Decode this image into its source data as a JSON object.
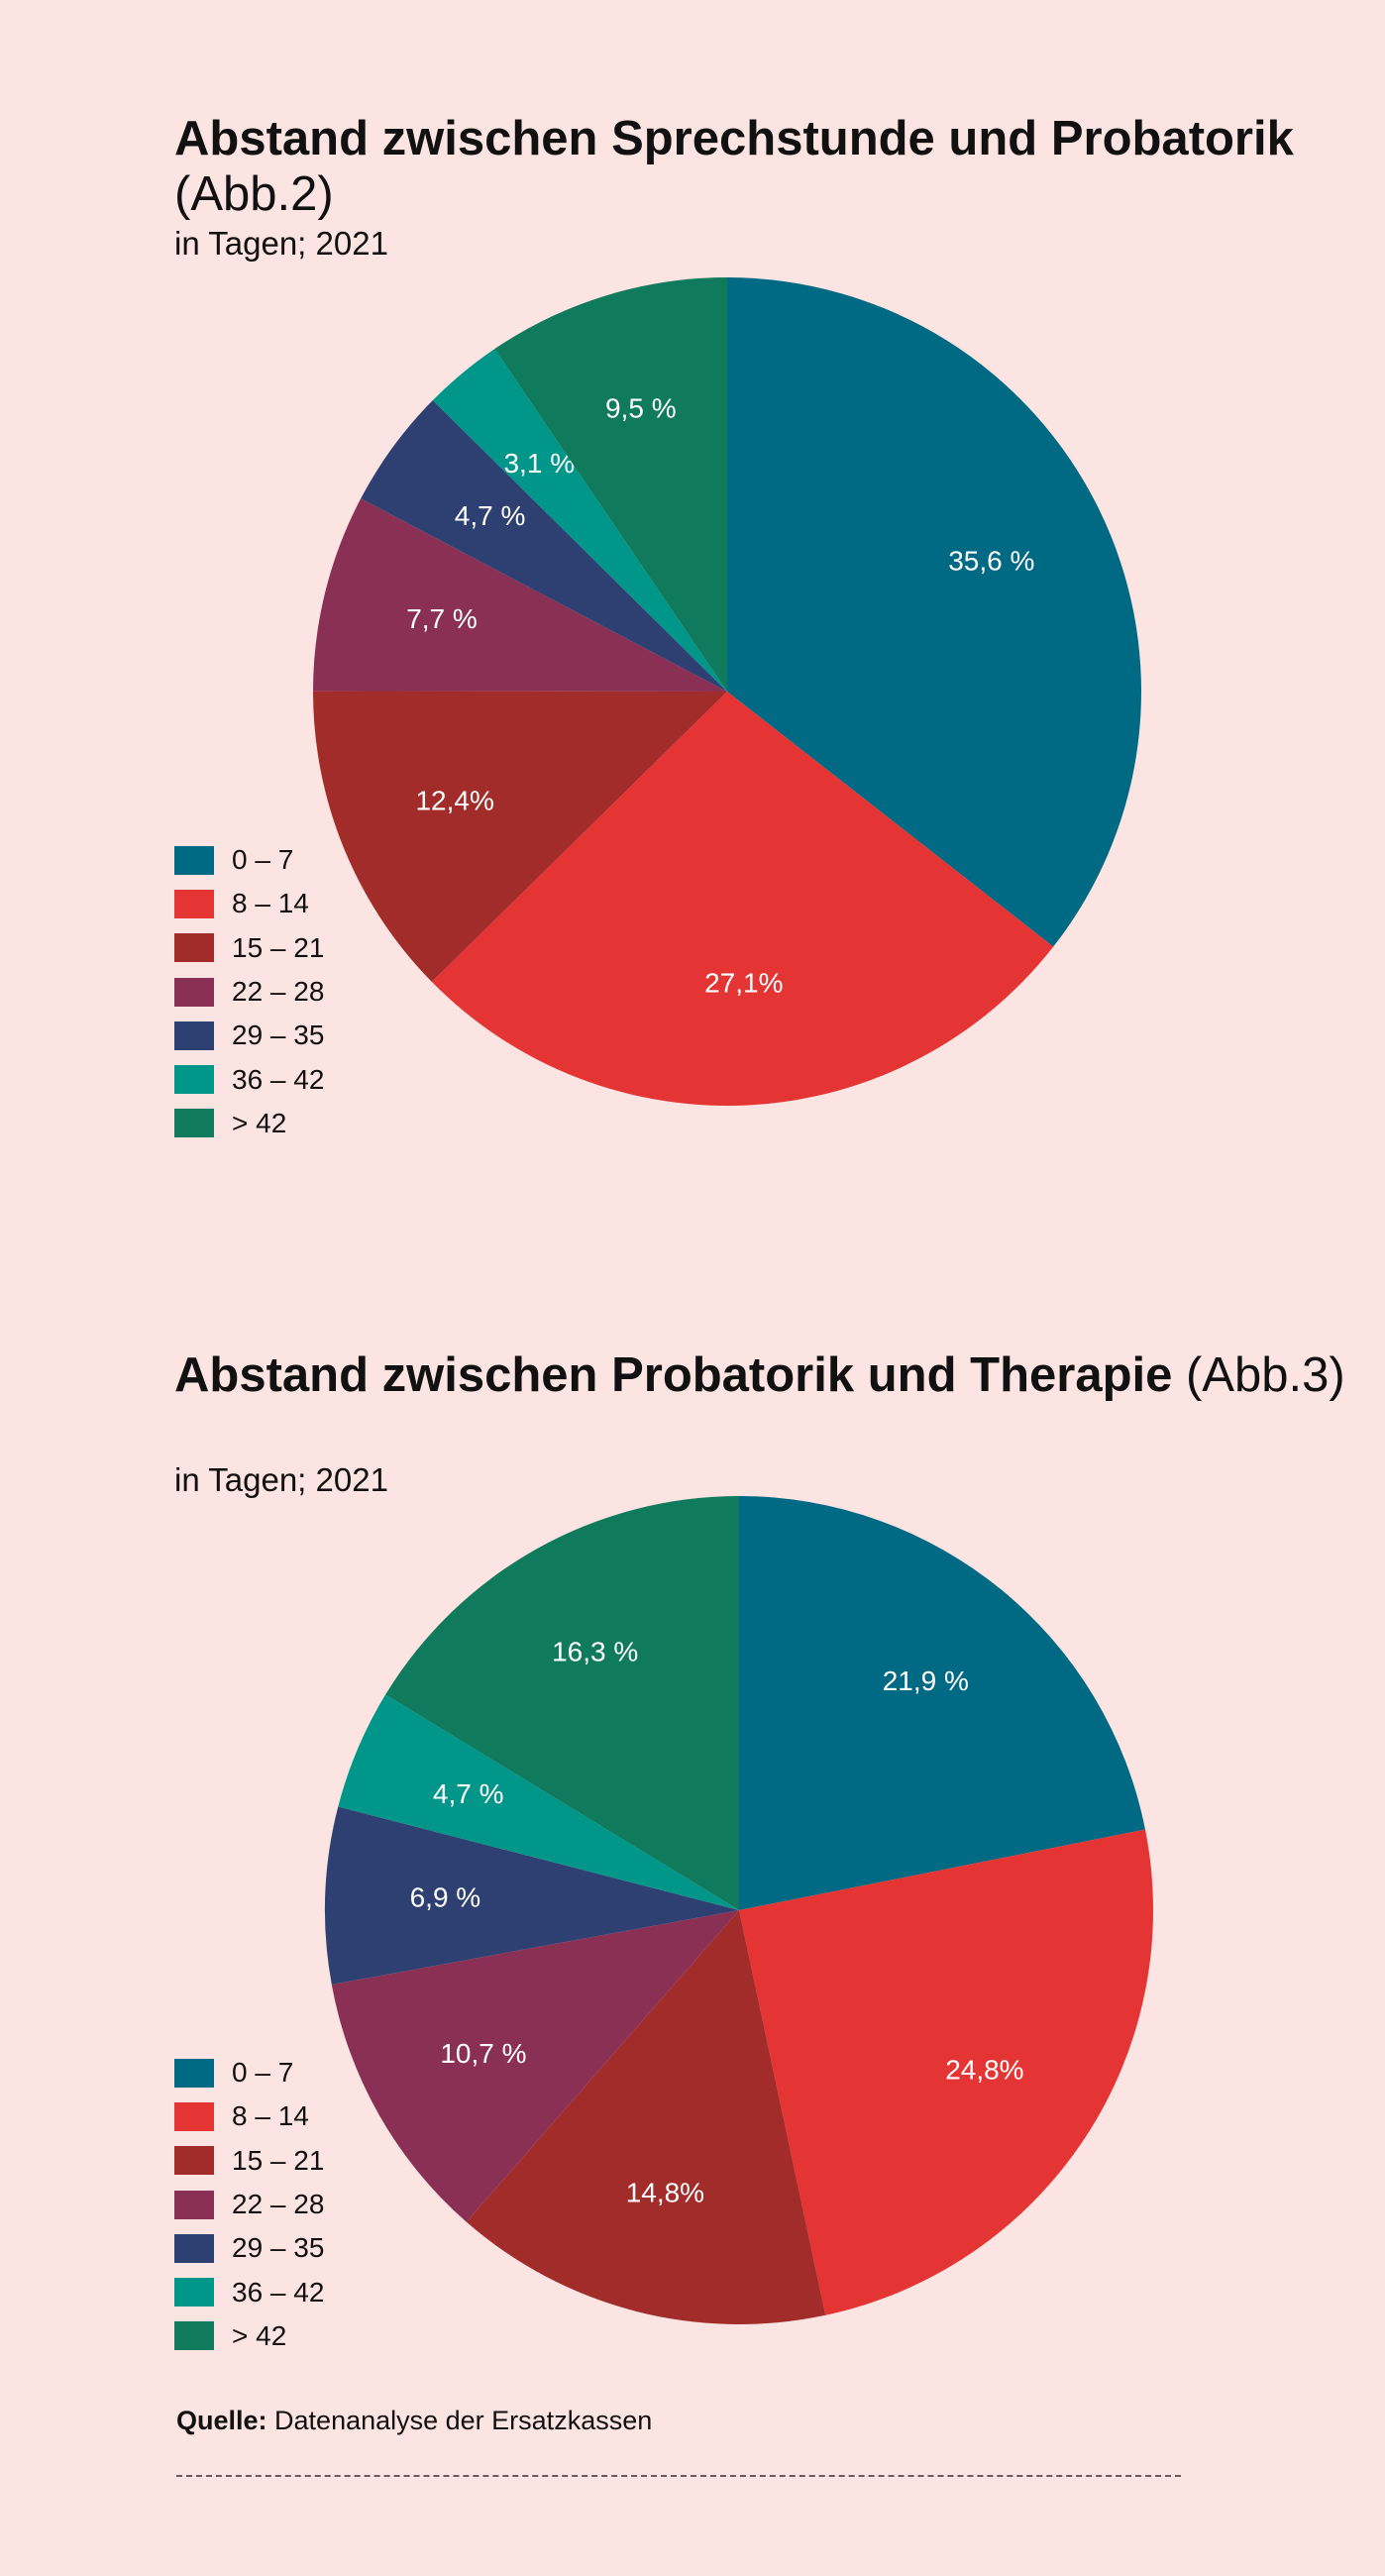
{
  "colors": {
    "background": "#fce4e2",
    "c0_7": "#006983",
    "c8_14": "#e53434",
    "c15_21": "#a22c2a",
    "c22_28": "#8a3054",
    "c29_35": "#2e4072",
    "c36_42": "#00968a",
    "c42plus": "#0f7b5c"
  },
  "chart_data": [
    {
      "type": "pie",
      "title_bold": "Abstand zwischen Sprechstunde und Probatorik",
      "title_rest": " (Abb.2)",
      "subtitle": "in Tagen; 2021",
      "legend_position": "bottom-left",
      "slices": [
        {
          "label": "0 – 7",
          "value": 35.6,
          "text": "35,6 %",
          "color": "#006983"
        },
        {
          "label": "8 – 14",
          "value": 27.1,
          "text": "27,1%",
          "color": "#e53434"
        },
        {
          "label": "15 – 21",
          "value": 12.4,
          "text": "12,4%",
          "color": "#a22c2a"
        },
        {
          "label": "22 – 28",
          "value": 7.7,
          "text": "7,7 %",
          "color": "#8a3054"
        },
        {
          "label": "29 – 35",
          "value": 4.7,
          "text": "4,7 %",
          "color": "#2e4072"
        },
        {
          "label": "36 – 42",
          "value": 3.1,
          "text": "3,1 %",
          "color": "#00968a"
        },
        {
          "label": "> 42",
          "value": 9.5,
          "text": "9,5 %",
          "color": "#0f7b5c"
        }
      ]
    },
    {
      "type": "pie",
      "title_bold": "Abstand zwischen Probatorik und Therapie",
      "title_rest": " (Abb.3)",
      "subtitle": "in Tagen; 2021",
      "legend_position": "bottom-left",
      "slices": [
        {
          "label": "0 – 7",
          "value": 21.9,
          "text": "21,9 %",
          "color": "#006983"
        },
        {
          "label": "8 – 14",
          "value": 24.8,
          "text": "24,8%",
          "color": "#e53434"
        },
        {
          "label": "15 – 21",
          "value": 14.8,
          "text": "14,8%",
          "color": "#a22c2a"
        },
        {
          "label": "22 – 28",
          "value": 10.7,
          "text": "10,7 %",
          "color": "#8a3054"
        },
        {
          "label": "29 – 35",
          "value": 6.9,
          "text": "6,9 %",
          "color": "#2e4072"
        },
        {
          "label": "36 – 42",
          "value": 4.7,
          "text": "4,7 %",
          "color": "#00968a"
        },
        {
          "label": "> 42",
          "value": 16.3,
          "text": "16,3 %",
          "color": "#0f7b5c"
        }
      ]
    }
  ],
  "source": {
    "label": "Quelle:",
    "text": " Datenanalyse der Ersatzkassen"
  }
}
